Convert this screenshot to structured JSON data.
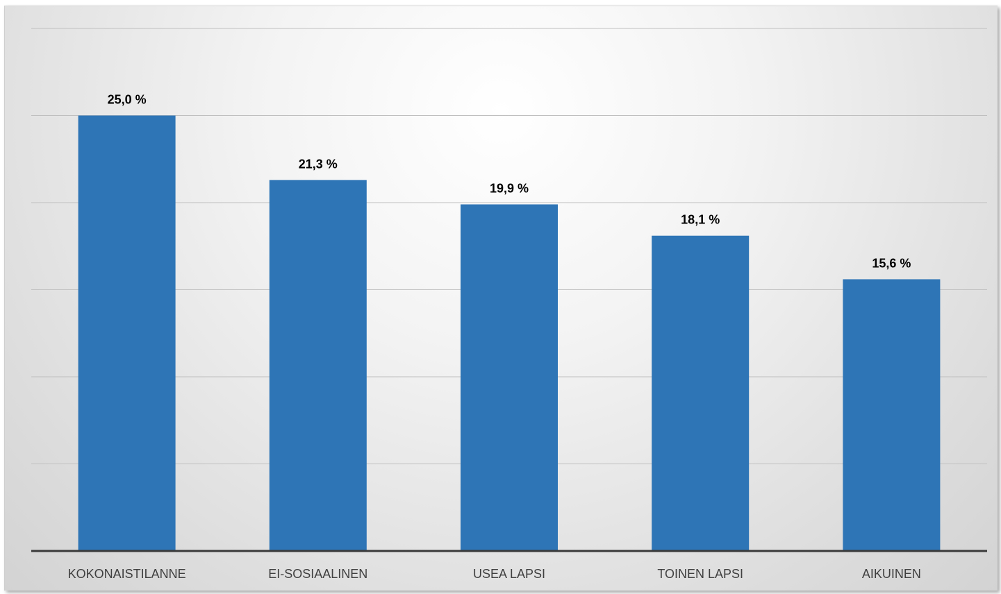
{
  "chart_data": {
    "type": "bar",
    "categories": [
      "KOKONAISTILANNE",
      "EI-SOSIAALINEN",
      "USEA LAPSI",
      "TOINEN LAPSI",
      "AIKUINEN"
    ],
    "values": [
      25.0,
      21.3,
      19.9,
      18.1,
      15.6
    ],
    "data_labels": [
      "25,0 %",
      "21,3 %",
      "19,9 %",
      "18,1 %",
      "15,6 %"
    ],
    "ylim": [
      0,
      30
    ],
    "grid": true,
    "legend": "none",
    "colors": {
      "bar": "#2E75B6",
      "gridline": "#bfbfbf",
      "axis": "#3a3a3a"
    }
  }
}
